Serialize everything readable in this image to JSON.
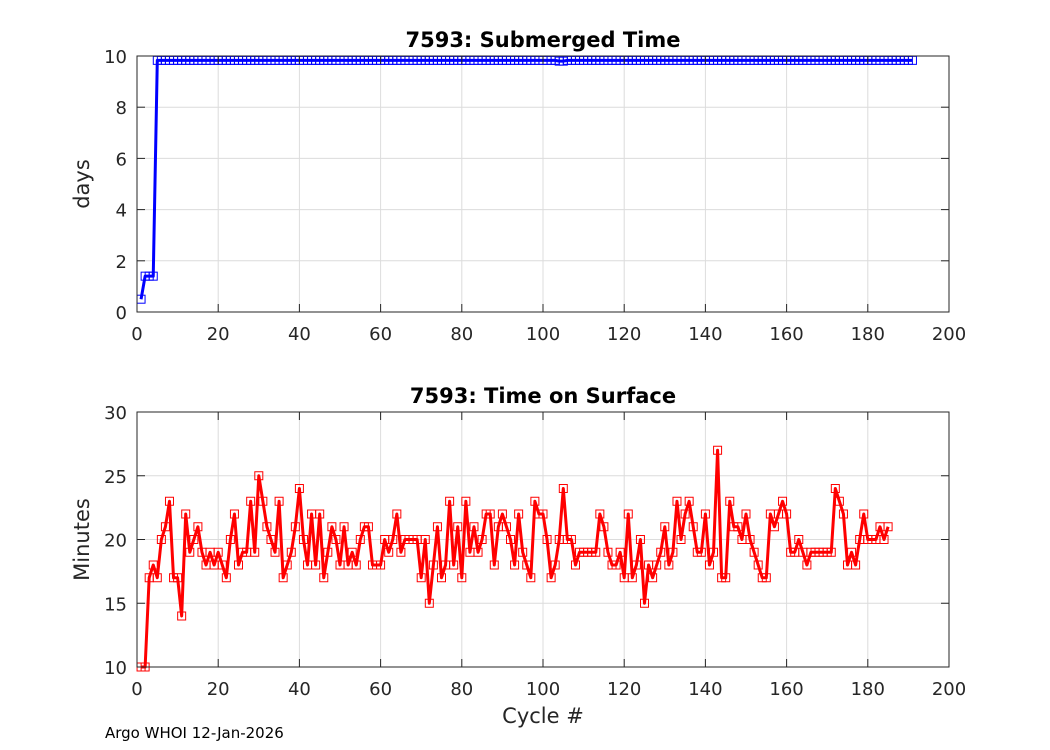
{
  "footer": "Argo WHOI 12-Jan-2026",
  "chart_data": [
    {
      "type": "line",
      "title": "7593: Submerged Time",
      "xlabel": "",
      "ylabel": "days",
      "xlim": [
        0,
        200
      ],
      "ylim": [
        0,
        10
      ],
      "xticks": [
        0,
        20,
        40,
        60,
        80,
        100,
        120,
        140,
        160,
        180,
        200
      ],
      "yticks": [
        0,
        2,
        4,
        6,
        8,
        10
      ],
      "grid": true,
      "color": "#0000ff",
      "marker": "square",
      "x_start": 1,
      "values": [
        0.5,
        1.4,
        1.4,
        1.4,
        9.83,
        9.83,
        9.83,
        9.83,
        9.83,
        9.83,
        9.83,
        9.83,
        9.83,
        9.83,
        9.83,
        9.83,
        9.83,
        9.83,
        9.83,
        9.83,
        9.83,
        9.83,
        9.83,
        9.83,
        9.83,
        9.83,
        9.83,
        9.83,
        9.83,
        9.83,
        9.83,
        9.83,
        9.83,
        9.83,
        9.83,
        9.83,
        9.83,
        9.83,
        9.83,
        9.83,
        9.83,
        9.83,
        9.83,
        9.83,
        9.83,
        9.83,
        9.83,
        9.83,
        9.83,
        9.83,
        9.83,
        9.83,
        9.83,
        9.83,
        9.83,
        9.83,
        9.83,
        9.83,
        9.83,
        9.83,
        9.83,
        9.83,
        9.83,
        9.83,
        9.83,
        9.83,
        9.83,
        9.83,
        9.83,
        9.83,
        9.83,
        9.83,
        9.83,
        9.83,
        9.83,
        9.83,
        9.83,
        9.83,
        9.83,
        9.83,
        9.83,
        9.83,
        9.83,
        9.83,
        9.83,
        9.83,
        9.83,
        9.83,
        9.83,
        9.83,
        9.83,
        9.83,
        9.83,
        9.83,
        9.83,
        9.83,
        9.83,
        9.83,
        9.83,
        9.83,
        9.83,
        9.83,
        9.83,
        9.8,
        9.8,
        9.83,
        9.83,
        9.83,
        9.83,
        9.83,
        9.83,
        9.83,
        9.83,
        9.83,
        9.83,
        9.83,
        9.83,
        9.83,
        9.83,
        9.83,
        9.83,
        9.83,
        9.83,
        9.83,
        9.83,
        9.83,
        9.83,
        9.83,
        9.83,
        9.83,
        9.83,
        9.83,
        9.83,
        9.83,
        9.83,
        9.83,
        9.83,
        9.83,
        9.83,
        9.83,
        9.83,
        9.83,
        9.83,
        9.83,
        9.83,
        9.83,
        9.83,
        9.83,
        9.83,
        9.83,
        9.83,
        9.83,
        9.83,
        9.83,
        9.83,
        9.83,
        9.83,
        9.83,
        9.83,
        9.83,
        9.83,
        9.83,
        9.83,
        9.83,
        9.83,
        9.83,
        9.83,
        9.83,
        9.83,
        9.83,
        9.83,
        9.83,
        9.83,
        9.83,
        9.83,
        9.83,
        9.83,
        9.83,
        9.83,
        9.83,
        9.83,
        9.83,
        9.83,
        9.83,
        9.83,
        9.83,
        9.83,
        9.83,
        9.83,
        9.83,
        9.83
      ]
    },
    {
      "type": "line",
      "title": "7593: Time on Surface",
      "xlabel": "Cycle #",
      "ylabel": "Minutes",
      "xlim": [
        0,
        200
      ],
      "ylim": [
        10,
        30
      ],
      "xticks": [
        0,
        20,
        40,
        60,
        80,
        100,
        120,
        140,
        160,
        180,
        200
      ],
      "yticks": [
        10,
        15,
        20,
        25,
        30
      ],
      "grid": true,
      "color": "#ff0000",
      "marker": "square",
      "x_start": 1,
      "values": [
        10,
        10,
        17,
        18,
        17,
        20,
        21,
        23,
        17,
        17,
        14,
        22,
        19,
        20,
        21,
        19,
        18,
        19,
        18,
        19,
        18,
        17,
        20,
        22,
        18,
        19,
        19,
        23,
        19,
        25,
        23,
        21,
        20,
        19,
        23,
        17,
        18,
        19,
        21,
        24,
        20,
        18,
        22,
        18,
        22,
        17,
        19,
        21,
        20,
        18,
        21,
        18,
        19,
        18,
        20,
        21,
        21,
        18,
        18,
        18,
        20,
        19,
        20,
        22,
        19,
        20,
        20,
        20,
        20,
        17,
        20,
        15,
        18,
        21,
        17,
        18,
        23,
        18,
        21,
        17,
        23,
        19,
        21,
        19,
        20,
        22,
        22,
        18,
        21,
        22,
        21,
        20,
        18,
        22,
        19,
        18,
        17,
        23,
        22,
        22,
        20,
        17,
        18,
        20,
        24,
        20,
        20,
        18,
        19,
        19,
        19,
        19,
        19,
        22,
        21,
        19,
        18,
        18,
        19,
        17,
        22,
        17,
        18,
        20,
        15,
        18,
        17,
        18,
        19,
        21,
        18,
        19,
        23,
        20,
        22,
        23,
        21,
        19,
        19,
        22,
        18,
        19,
        27,
        17,
        17,
        23,
        21,
        21,
        20,
        22,
        20,
        19,
        18,
        17,
        17,
        22,
        21,
        22,
        23,
        22,
        19,
        19,
        20,
        19,
        18,
        19,
        19,
        19,
        19,
        19,
        19,
        24,
        23,
        22,
        18,
        19,
        18,
        20,
        22,
        20,
        20,
        20,
        21,
        20,
        21
      ]
    }
  ]
}
